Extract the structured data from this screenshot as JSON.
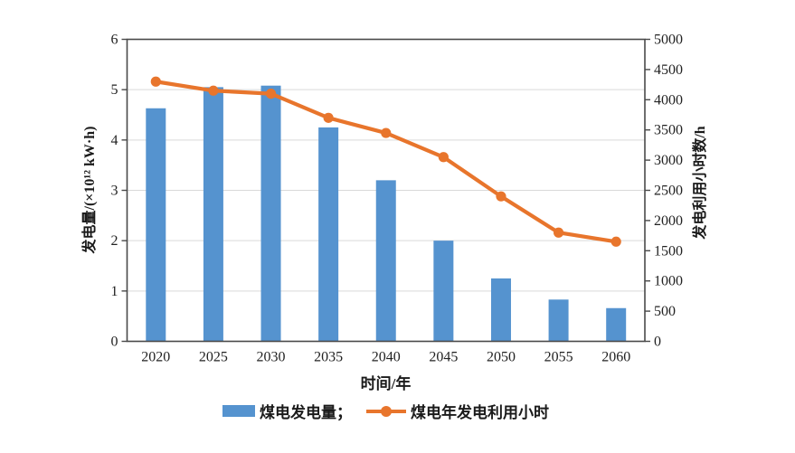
{
  "colors": {
    "bar": "#5593CF",
    "line": "#E8752C",
    "grid": "#D9D9D9",
    "axis": "#4A4A4A",
    "text": "#222222"
  },
  "axes": {
    "left_title": "发电量/(×10¹² kW·h)",
    "right_title": "发电利用小时数/h",
    "x_title": "时间/年"
  },
  "legend": {
    "bar_label": "煤电发电量；",
    "line_label": "煤电年发电利用小时"
  },
  "chart_data": {
    "type": "bar",
    "subtype": "bar+line dual axis",
    "title": "",
    "xlabel": "时间/年",
    "ylabel_left": "发电量/(×10¹² kW·h)",
    "ylabel_right": "发电利用小时数/h",
    "categories": [
      "2020",
      "2025",
      "2030",
      "2035",
      "2040",
      "2045",
      "2050",
      "2055",
      "2060"
    ],
    "series": [
      {
        "name": "煤电发电量",
        "type": "bar",
        "axis": "left",
        "unit": "×10¹² kW·h",
        "values": [
          4.63,
          5.05,
          5.08,
          4.25,
          3.2,
          2.0,
          1.25,
          0.83,
          0.66
        ]
      },
      {
        "name": "煤电年发电利用小时",
        "type": "line",
        "axis": "right",
        "unit": "h",
        "values": [
          4300,
          4150,
          4100,
          3700,
          3450,
          3050,
          2400,
          1800,
          1650
        ]
      }
    ],
    "ylim_left": [
      0,
      6
    ],
    "ylim_right": [
      0,
      5000
    ],
    "yticks_left": [
      0,
      1,
      2,
      3,
      4,
      5,
      6
    ],
    "yticks_right": [
      0,
      500,
      1000,
      1500,
      2000,
      2500,
      3000,
      3500,
      4000,
      4500,
      5000
    ],
    "grid": "horizontal gridlines at left-axis values 1-5",
    "legend_position": "bottom"
  }
}
